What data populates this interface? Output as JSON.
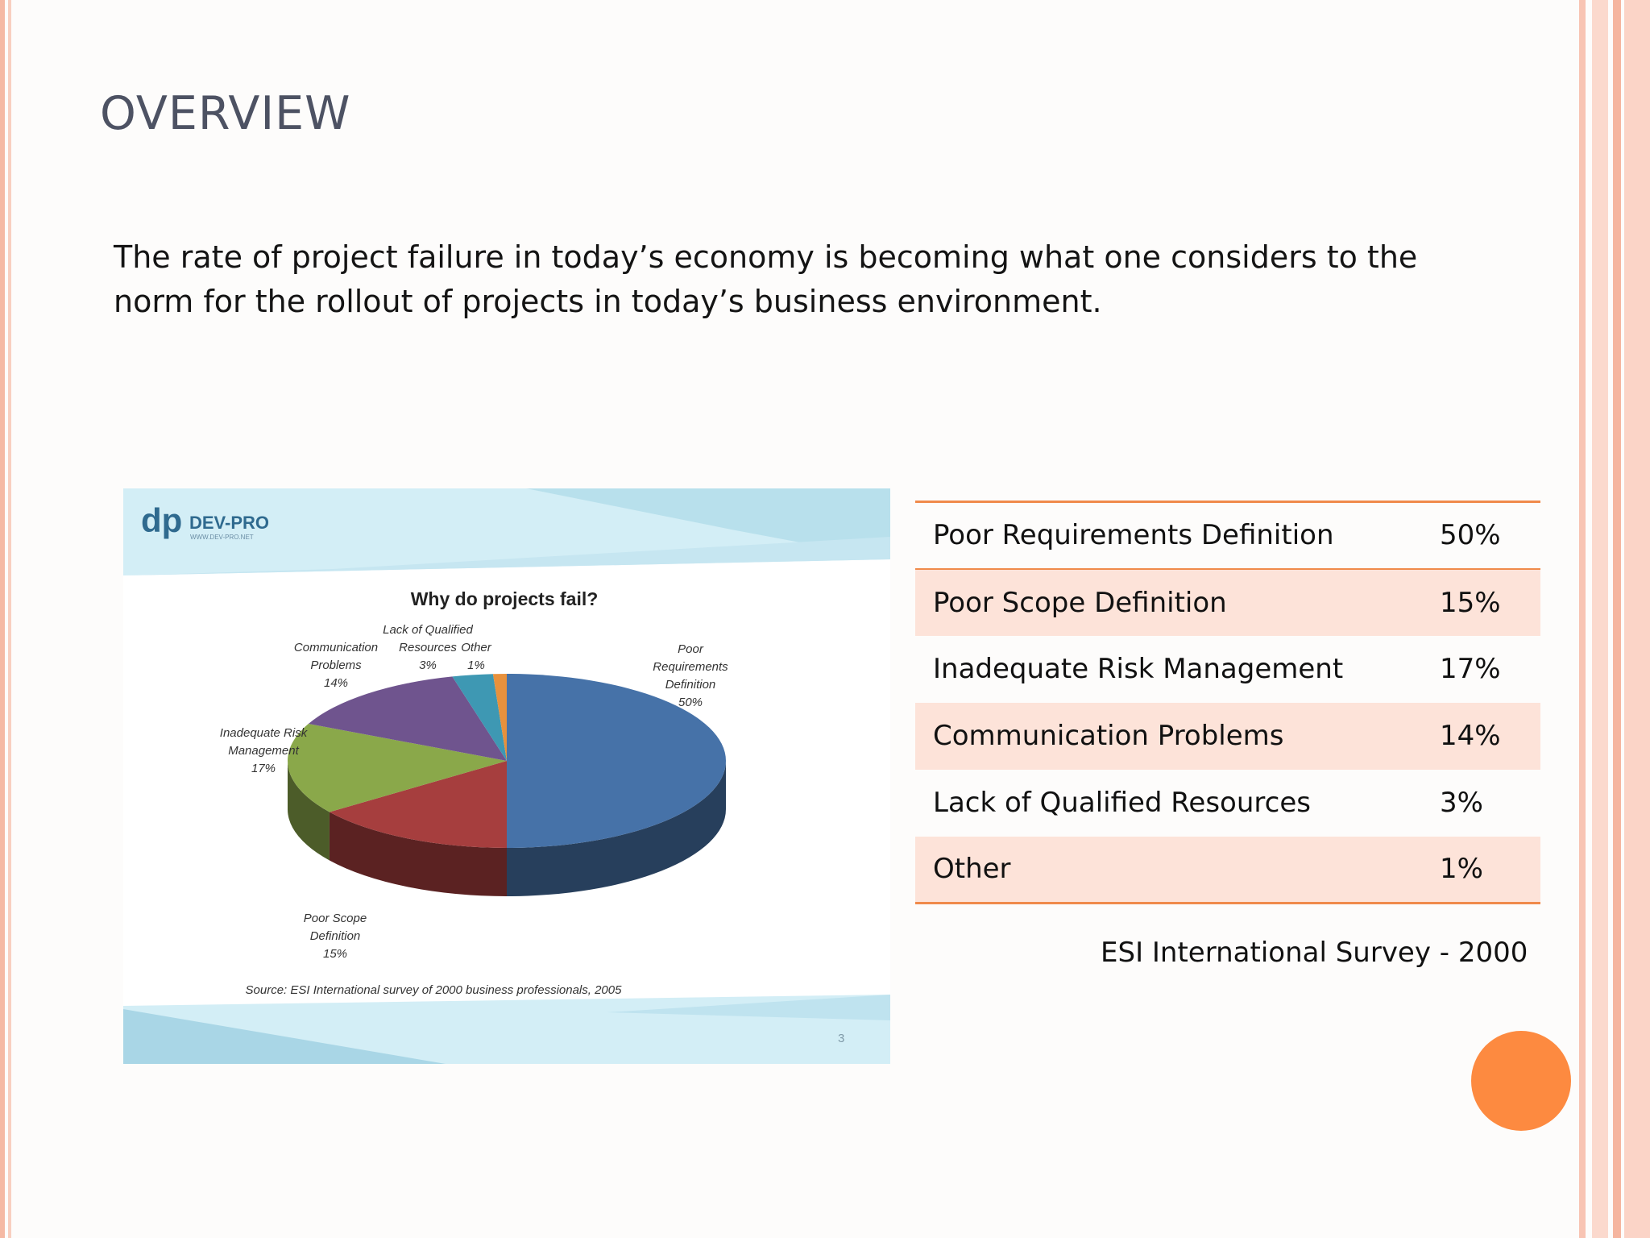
{
  "slide": {
    "title": "OVERVIEW",
    "body": "The rate of project failure in today’s economy is becoming what one considers to the norm for the rollout of projects in today’s business environment."
  },
  "embedded_image": {
    "logo_text": "DEV-PRO",
    "logo_url_text": "WWW.DEV-PRO.NET",
    "source_text": "Source: ESI International survey of 2000 business professionals, 2005",
    "page_number": "3"
  },
  "chart_data": {
    "type": "pie",
    "title": "Why do projects fail?",
    "slices": [
      {
        "label": "Poor Requirements Definition",
        "label_lines": [
          "Poor",
          "Requirements",
          "Definition"
        ],
        "value": 50,
        "value_label": "50%",
        "color": "#4672a8"
      },
      {
        "label": "Poor Scope Definition",
        "label_lines": [
          "Poor Scope",
          "Definition"
        ],
        "value": 15,
        "value_label": "15%",
        "color": "#a63e3e"
      },
      {
        "label": "Inadequate Risk Management",
        "label_lines": [
          "Inadequate Risk",
          "Management"
        ],
        "value": 17,
        "value_label": "17%",
        "color": "#8aa84a"
      },
      {
        "label": "Communication Problems",
        "label_lines": [
          "Communication",
          "Problems"
        ],
        "value": 14,
        "value_label": "14%",
        "color": "#6f548e"
      },
      {
        "label": "Lack of Qualified Resources",
        "label_lines": [
          "Lack of Qualified",
          "Resources"
        ],
        "value": 3,
        "value_label": "3%",
        "color": "#3e98b3"
      },
      {
        "label": "Other",
        "label_lines": [
          "Other"
        ],
        "value": 1,
        "value_label": "1%",
        "color": "#e8913c"
      }
    ]
  },
  "table": {
    "rows": [
      {
        "cause": "Poor Requirements Definition",
        "percent": "50%"
      },
      {
        "cause": "Poor Scope Definition",
        "percent": "15%"
      },
      {
        "cause": "Inadequate Risk Management",
        "percent": "17%"
      },
      {
        "cause": "Communication Problems",
        "percent": "14%"
      },
      {
        "cause": "Lack of Qualified Resources",
        "percent": "3%"
      },
      {
        "cause": "Other",
        "percent": "1%"
      }
    ]
  },
  "caption": "ESI International Survey - 2000",
  "colors": {
    "accent": "#fd8a40",
    "table_alt_row": "#fde3d9",
    "table_rule": "#f08a4b",
    "title_text": "#4d5263"
  }
}
